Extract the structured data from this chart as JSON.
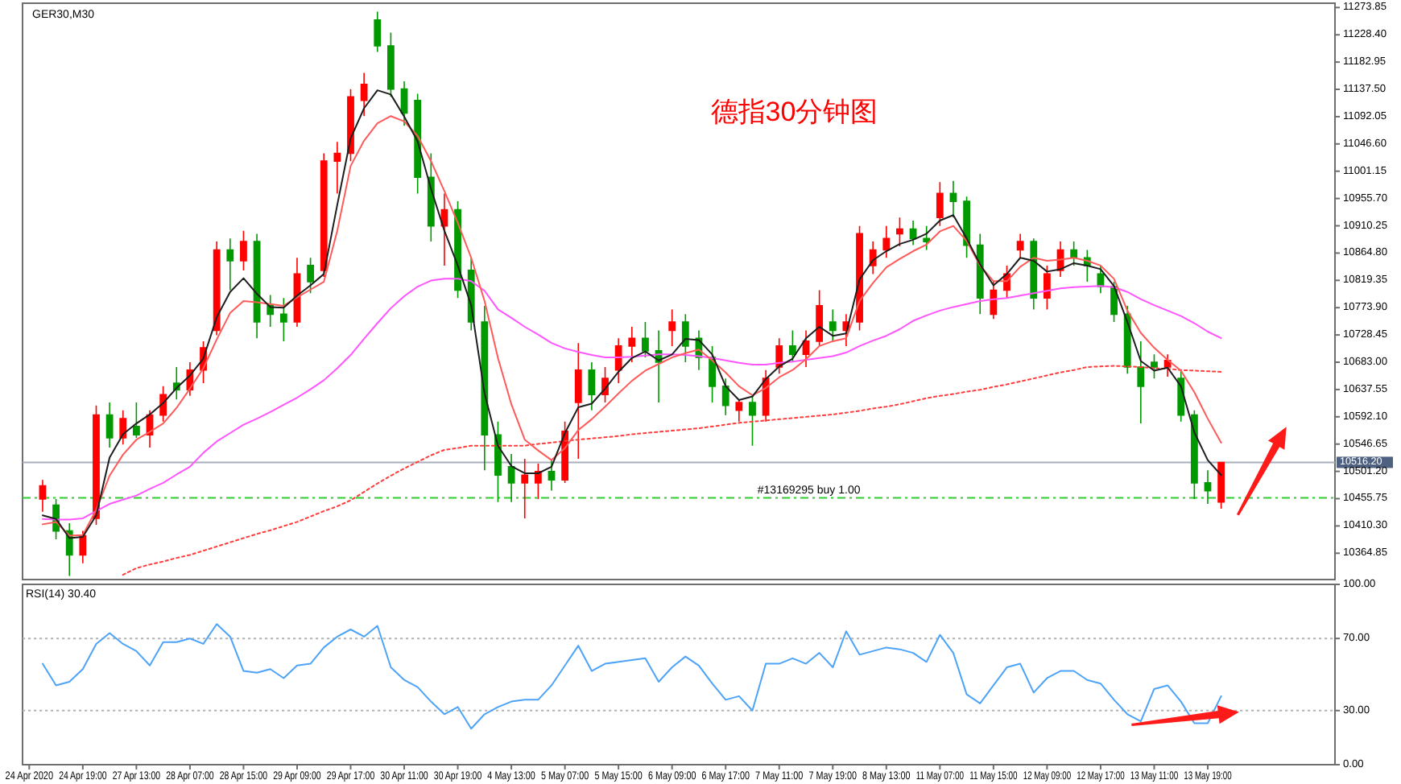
{
  "chart_data": [
    {
      "type": "candlestick",
      "title": "德指30分钟图",
      "subtitle": "GER30,M30",
      "ylim": [
        10321,
        11281
      ],
      "yticks": [
        11273.85,
        {
          "value": 11228.4,
          "label": "11228.40"
        },
        11182.95,
        {
          "value": 11137.5,
          "label": "11137.50"
        },
        11092.05,
        {
          "value": 11046.6,
          "label": "11046.60"
        },
        11001.15,
        {
          "value": 10955.7,
          "label": "10955.70"
        },
        10910.25,
        {
          "value": 10864.8,
          "label": "10864.80"
        },
        10819.35,
        {
          "value": 10773.9,
          "label": "10773.90"
        },
        10728.45,
        {
          "value": 10683,
          "label": "10683.00"
        },
        10637.55,
        {
          "value": 10592.1,
          "label": "10592.10"
        },
        10546.65,
        {
          "value": 10501.2,
          "label": "10501.20"
        },
        10455.75,
        {
          "value": 10410.3,
          "label": "10410.30"
        },
        10364.85
      ],
      "categories": [
        null,
        null,
        null,
        null,
        null,
        null,
        null,
        null,
        null,
        null,
        null,
        null,
        null,
        null,
        null,
        null,
        null,
        null,
        null,
        null,
        null,
        null,
        null,
        null,
        null,
        null,
        null,
        null,
        null,
        null,
        null,
        null,
        null,
        null,
        null,
        null,
        null,
        null,
        null,
        null,
        null,
        null,
        null,
        null,
        null,
        null,
        null,
        null,
        null,
        null,
        null,
        null,
        null,
        null,
        null,
        null,
        null,
        null,
        null,
        null,
        null,
        null,
        null,
        null,
        null,
        null,
        null,
        null,
        null,
        null,
        null,
        null,
        null,
        null,
        null,
        null,
        null,
        null,
        null,
        null,
        null,
        null,
        null,
        null,
        null,
        null,
        null,
        null,
        null,
        null,
        null,
        null,
        null,
        null,
        null,
        null,
        null,
        null
      ],
      "ohlc": [
        null,
        [
          10455,
          10487,
          10434,
          10477
        ],
        [
          10445,
          10455,
          10388,
          10402
        ],
        [
          10402,
          10415,
          10327,
          10362
        ],
        [
          10362,
          10402,
          10348,
          10394
        ],
        [
          10423,
          10611,
          10412,
          10595
        ],
        [
          10595,
          10616,
          10541,
          10557
        ],
        [
          10557,
          10603,
          10546,
          10589
        ],
        [
          10576,
          10616,
          10557,
          10562
        ],
        [
          10562,
          10603,
          10541,
          10595
        ],
        [
          10595,
          10643,
          10584,
          10629
        ],
        [
          10648,
          10675,
          10621,
          10637
        ],
        [
          10637,
          10683,
          10627,
          10670
        ],
        [
          10670,
          10718,
          10648,
          10707
        ],
        [
          10736,
          10884,
          10728,
          10870
        ],
        [
          10870,
          10889,
          10803,
          10852
        ],
        [
          10852,
          10902,
          10836,
          10884
        ],
        [
          10884,
          10897,
          10723,
          10750
        ],
        [
          10777,
          10795,
          10742,
          10763
        ],
        [
          10763,
          10790,
          10718,
          10750
        ],
        [
          10750,
          10857,
          10742,
          10830
        ],
        [
          10844,
          10857,
          10798,
          10817
        ],
        [
          10836,
          11031,
          10825,
          11018
        ],
        [
          11018,
          11050,
          10964,
          11031
        ],
        [
          11031,
          11138,
          11018,
          11125
        ],
        [
          11119,
          11165,
          11093,
          11146
        ],
        [
          11253,
          11267,
          11200,
          11210
        ],
        [
          11210,
          11232,
          11125,
          11138
        ],
        [
          11138,
          11151,
          11077,
          11098
        ],
        [
          11119,
          11130,
          10964,
          10991
        ],
        [
          10991,
          11031,
          10884,
          10910
        ],
        [
          10910,
          10964,
          10844,
          10937
        ],
        [
          10937,
          10951,
          10790,
          10803
        ],
        [
          10836,
          10857,
          10736,
          10750
        ],
        [
          10750,
          10777,
          10503,
          10562
        ],
        [
          10562,
          10584,
          10450,
          10495
        ],
        [
          10509,
          10530,
          10450,
          10482
        ],
        [
          10482,
          10522,
          10423,
          10495
        ],
        [
          10482,
          10514,
          10455,
          10501
        ],
        [
          10501,
          10522,
          10469,
          10487
        ],
        [
          10487,
          10584,
          10482,
          10568
        ],
        [
          10616,
          10715,
          10522,
          10670
        ],
        [
          10670,
          10683,
          10603,
          10629
        ],
        [
          10629,
          10675,
          10616,
          10656
        ],
        [
          10670,
          10723,
          10648,
          10710
        ],
        [
          10710,
          10742,
          10683,
          10723
        ],
        [
          10723,
          10750,
          10691,
          10702
        ],
        [
          10702,
          10736,
          10616,
          10683
        ],
        [
          10736,
          10771,
          10710,
          10750
        ],
        [
          10750,
          10763,
          10683,
          10710
        ],
        [
          10723,
          10736,
          10670,
          10691
        ],
        [
          10691,
          10710,
          10616,
          10643
        ],
        [
          10643,
          10656,
          10595,
          10611
        ],
        [
          10603,
          10621,
          10584,
          10616
        ],
        [
          10616,
          10629,
          10544,
          10595
        ],
        [
          10595,
          10670,
          10584,
          10656
        ],
        [
          10675,
          10723,
          10664,
          10710
        ],
        [
          10710,
          10736,
          10683,
          10696
        ],
        [
          10696,
          10736,
          10675,
          10718
        ],
        [
          10718,
          10803,
          10710,
          10777
        ],
        [
          10750,
          10771,
          10718,
          10736
        ],
        [
          10736,
          10763,
          10710,
          10750
        ],
        [
          10750,
          10910,
          10736,
          10897
        ],
        [
          10844,
          10884,
          10830,
          10870
        ],
        [
          10870,
          10910,
          10857,
          10889
        ],
        [
          10897,
          10924,
          10876,
          10905
        ],
        [
          10905,
          10919,
          10878,
          10889
        ],
        [
          10889,
          10910,
          10870,
          10884
        ],
        [
          10924,
          10983,
          10910,
          10964
        ],
        [
          10964,
          10985,
          10924,
          10951
        ],
        [
          10951,
          10959,
          10857,
          10878
        ],
        [
          10878,
          10897,
          10763,
          10790
        ],
        [
          10763,
          10817,
          10755,
          10803
        ],
        [
          10803,
          10844,
          10790,
          10830
        ],
        [
          10870,
          10897,
          10857,
          10884
        ],
        [
          10884,
          10889,
          10771,
          10790
        ],
        [
          10790,
          10844,
          10771,
          10830
        ],
        [
          10836,
          10884,
          10825,
          10870
        ],
        [
          10870,
          10884,
          10844,
          10857
        ],
        [
          10857,
          10870,
          10817,
          10844
        ],
        [
          10830,
          10844,
          10798,
          10809
        ],
        [
          10809,
          10817,
          10750,
          10763
        ],
        [
          10763,
          10777,
          10664,
          10675
        ],
        [
          10675,
          10718,
          10581,
          10643
        ],
        [
          10683,
          10696,
          10656,
          10675
        ],
        [
          10675,
          10696,
          10659,
          10686
        ],
        [
          10656,
          10670,
          10584,
          10595
        ],
        [
          10595,
          10603,
          10455,
          10482
        ],
        [
          10482,
          10503,
          10447,
          10469
        ],
        [
          10450,
          10517,
          10439,
          10516
        ],
        null,
        null,
        null,
        null,
        null,
        null,
        null,
        null
      ],
      "colors": [
        null,
        "#ff0000",
        "#009900",
        "#009900",
        "#ff0000",
        "#ff0000",
        "#009900",
        "#ff0000",
        "#009900",
        "#ff0000",
        "#ff0000",
        "#009900",
        "#ff0000",
        "#ff0000",
        "#ff0000",
        "#009900",
        "#ff0000",
        "#009900",
        "#009900",
        "#009900",
        "#ff0000",
        "#009900",
        "#ff0000",
        "#ff0000",
        "#ff0000",
        "#ff0000",
        "#009900",
        "#009900",
        "#009900",
        "#009900",
        "#009900",
        "#ff0000",
        "#009900",
        "#009900",
        "#009900",
        "#009900",
        "#009900",
        "#ff0000",
        "#ff0000",
        "#009900",
        "#ff0000",
        "#ff0000",
        "#009900",
        "#ff0000",
        "#ff0000",
        "#ff0000",
        "#009900",
        "#009900",
        "#ff0000",
        "#009900",
        "#009900",
        "#009900",
        "#009900",
        "#ff0000",
        "#009900",
        "#ff0000",
        "#ff0000",
        "#009900",
        "#ff0000",
        "#ff0000",
        "#009900",
        "#ff0000",
        "#ff0000",
        "#ff0000",
        "#ff0000",
        "#ff0000",
        "#009900",
        "#009900",
        "#ff0000",
        "#009900",
        "#009900",
        "#009900",
        "#ff0000",
        "#ff0000",
        "#ff0000",
        "#009900",
        "#ff0000",
        "#ff0000",
        "#009900",
        "#009900",
        "#009900",
        "#009900",
        "#009900",
        "#009900",
        "#009900",
        "#ff0000",
        "#009900",
        "#009900",
        "#009900",
        "#ff0000",
        null,
        null,
        null,
        null,
        null,
        null,
        null,
        null
      ],
      "series": [
        {
          "type": "line",
          "color": "#ff3c3c",
          "line_style": "dotted",
          "values": [
            null,
            null,
            null,
            null,
            null,
            null,
            null,
            10329,
            10340,
            10346,
            10351,
            10357,
            10362,
            10369,
            10376,
            10383,
            10390,
            10397,
            10403,
            10410,
            10417,
            10426,
            10435,
            10443,
            10453,
            10467,
            10481,
            10494,
            10506,
            10517,
            10528,
            10537,
            10540,
            10544,
            10544,
            10544,
            10544,
            10544,
            10547,
            10549,
            10552,
            10554,
            10556,
            10558,
            10560,
            10563,
            10565,
            10567,
            10569,
            10571,
            10573,
            10576,
            10579,
            10582,
            10584,
            10586,
            10588,
            10590,
            10592,
            10594,
            10596,
            10599,
            10602,
            10606,
            10609,
            10613,
            10618,
            10623,
            10627,
            10630,
            10634,
            10637,
            10642,
            10646,
            10651,
            10656,
            10661,
            10666,
            10670,
            10675,
            10676,
            10677,
            10676,
            10675,
            10673,
            10672,
            10670,
            10669,
            10668,
            10667,
            null,
            null,
            null,
            null,
            null,
            null,
            null,
            null
          ]
        },
        {
          "type": "line",
          "color": "#ff55ff",
          "values": [
            null,
            10422,
            10421,
            10421,
            10423,
            10435,
            10447,
            10454,
            10461,
            10472,
            10482,
            10496,
            10509,
            10532,
            10551,
            10565,
            10579,
            10589,
            10600,
            10612,
            10624,
            10638,
            10653,
            10673,
            10695,
            10722,
            10748,
            10773,
            10793,
            10809,
            10819,
            10822,
            10822,
            10818,
            10802,
            10771,
            10757,
            10742,
            10729,
            10715,
            10706,
            10700,
            10695,
            10691,
            10691,
            10692,
            10694,
            10696,
            10696,
            10695,
            10693,
            10690,
            10686,
            10682,
            10679,
            10679,
            10682,
            10684,
            10687,
            10690,
            10693,
            10699,
            10710,
            10719,
            10727,
            10738,
            10752,
            10761,
            10769,
            10775,
            10780,
            10785,
            10788,
            10790,
            10794,
            10798,
            10802,
            10806,
            10808,
            10809,
            10810,
            10808,
            10800,
            10788,
            10778,
            10769,
            10760,
            10748,
            10734,
            10723,
            null,
            null,
            null,
            null,
            null,
            null,
            null,
            null
          ]
        },
        {
          "type": "line",
          "color": "#ff5a5a",
          "values": [
            null,
            10413,
            10417,
            10394,
            10395,
            10437,
            10494,
            10529,
            10554,
            10567,
            10581,
            10607,
            10639,
            10673,
            10721,
            10765,
            10785,
            10783,
            10780,
            10777,
            10791,
            10804,
            10817,
            10902,
            11010,
            11052,
            11081,
            11093,
            11084,
            11060,
            11018,
            10968,
            10915,
            10857,
            10785,
            10690,
            10613,
            10554,
            10536,
            10520,
            10540,
            10570,
            10588,
            10609,
            10631,
            10652,
            10669,
            10680,
            10691,
            10698,
            10704,
            10686,
            10666,
            10643,
            10628,
            10640,
            10658,
            10670,
            10688,
            10710,
            10718,
            10723,
            10785,
            10815,
            10841,
            10855,
            10868,
            10879,
            10901,
            10910,
            10885,
            10844,
            10818,
            10818,
            10842,
            10857,
            10852,
            10854,
            10857,
            10852,
            10844,
            10822,
            10769,
            10732,
            10707,
            10687,
            10669,
            10633,
            10589,
            10549,
            null,
            null,
            null,
            null,
            null,
            null,
            null,
            null
          ]
        },
        {
          "type": "line",
          "color": "#1e1e1e",
          "values": [
            null,
            10428,
            10422,
            10390,
            10392,
            10428,
            10524,
            10563,
            10581,
            10596,
            10615,
            10640,
            10661,
            10689,
            10758,
            10800,
            10823,
            10797,
            10775,
            10774,
            10794,
            10811,
            10830,
            10945,
            11056,
            11106,
            11136,
            11129,
            11092,
            11051,
            10972,
            10902,
            10844,
            10778,
            10631,
            10544,
            10510,
            10498,
            10498,
            10509,
            10565,
            10608,
            10614,
            10639,
            10667,
            10690,
            10701,
            10686,
            10696,
            10722,
            10720,
            10696,
            10643,
            10620,
            10626,
            10655,
            10676,
            10689,
            10723,
            10742,
            10727,
            10731,
            10821,
            10853,
            10868,
            10880,
            10887,
            10897,
            10919,
            10928,
            10889,
            10846,
            10811,
            10830,
            10857,
            10852,
            10834,
            10838,
            10848,
            10844,
            10838,
            10810,
            10750,
            10685,
            10669,
            10674,
            10643,
            10566,
            10520,
            10495,
            null,
            null,
            null,
            null,
            null,
            null,
            null,
            null
          ]
        }
      ],
      "ref_lines": [
        {
          "axis": "y",
          "value": 10516.2,
          "label": "10516.20",
          "color": "#a8b0bc",
          "line_style": "solid"
        },
        {
          "axis": "y",
          "value": 10457,
          "label": "#13169295 buy 1.00",
          "color": "#33cc33",
          "line_style": "dashed"
        }
      ]
    },
    {
      "type": "line",
      "title": "RSI(14) 30.40",
      "ylim": [
        0,
        100
      ],
      "yticks": [
        {
          "value": 0,
          "label": "0.00"
        },
        {
          "value": 30,
          "label": "30.00"
        },
        {
          "value": 70,
          "label": "70.00"
        },
        {
          "value": 100,
          "label": "100.00"
        }
      ],
      "categories": [
        "24 Apr 2020",
        null,
        null,
        null,
        "24 Apr 19:00",
        null,
        null,
        null,
        "27 Apr 13:00",
        null,
        null,
        null,
        "28 Apr 07:00",
        null,
        null,
        null,
        "28 Apr 15:00",
        null,
        null,
        null,
        "29 Apr 09:00",
        null,
        null,
        null,
        "29 Apr 17:00",
        null,
        null,
        null,
        "30 Apr 11:00",
        null,
        null,
        null,
        "30 Apr 19:00",
        null,
        null,
        null,
        "4 May 13:00",
        null,
        null,
        null,
        "5 May 07:00",
        null,
        null,
        null,
        "5 May 15:00",
        null,
        null,
        null,
        "6 May 09:00",
        null,
        null,
        null,
        "6 May 17:00",
        null,
        null,
        null,
        "7 May 11:00",
        null,
        null,
        null,
        "7 May 19:00",
        null,
        null,
        null,
        "8 May 13:00",
        null,
        null,
        null,
        "11 May 07:00",
        null,
        null,
        null,
        "11 May 15:00",
        null,
        null,
        null,
        "12 May 09:00",
        null,
        null,
        null,
        "12 May 17:00",
        null,
        null,
        null,
        "13 May 11:00",
        null,
        null,
        null,
        "13 May 19:00",
        null,
        null,
        null,
        null,
        null,
        null,
        null,
        null,
        null
      ],
      "ref_lines": [
        {
          "axis": "y",
          "value": 70,
          "color": "#b4b4b4",
          "line_style": "dotted"
        },
        {
          "axis": "y",
          "value": 30,
          "color": "#b4b4b4",
          "line_style": "dotted"
        }
      ],
      "series": [
        {
          "color": "#4da3f7",
          "values": [
            null,
            56,
            44,
            46,
            53,
            67,
            73,
            67,
            63,
            55,
            68,
            68,
            70,
            67,
            78,
            71,
            52,
            51,
            53,
            48,
            55,
            56,
            65,
            71,
            75,
            71,
            77,
            54,
            47,
            43,
            35,
            28,
            32,
            20,
            28,
            32,
            35,
            36,
            36,
            44,
            55,
            66,
            52,
            56,
            57,
            58,
            59,
            46,
            54,
            60,
            55,
            45,
            36,
            38,
            30,
            56,
            56,
            59,
            56,
            62,
            54,
            74,
            61,
            63,
            65,
            64,
            62,
            57,
            72,
            62,
            39,
            34,
            44,
            54,
            56,
            40,
            48,
            52,
            52,
            47,
            45,
            36,
            28,
            24,
            42,
            44,
            35,
            23,
            23,
            38,
            null,
            null,
            null,
            null,
            null,
            null,
            null,
            null
          ]
        }
      ]
    }
  ]
}
